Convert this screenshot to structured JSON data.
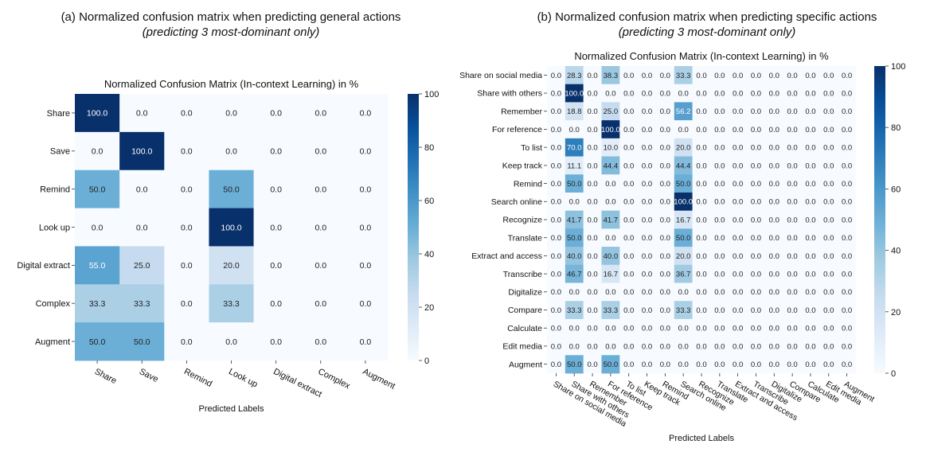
{
  "panel_a": {
    "title": "(a) Normalized confusion matrix when predicting general actions",
    "subtitle": "(predicting 3 most-dominant only)"
  },
  "panel_b": {
    "title": "(b) Normalized confusion matrix when predicting specific actions",
    "subtitle": "(predicting 3 most-dominant only)"
  },
  "chart_data": [
    {
      "type": "heatmap",
      "title": "Normalized Confusion Matrix (In-context Learning) in %",
      "xlabel": "Predicted Labels",
      "ylabel": "",
      "x_labels": [
        "Share",
        "Save",
        "Remind",
        "Look up",
        "Digital extract",
        "Complex",
        "Augment"
      ],
      "y_labels": [
        "Share",
        "Save",
        "Remind",
        "Look up",
        "Digital extract",
        "Complex",
        "Augment"
      ],
      "values": [
        [
          100.0,
          0.0,
          0.0,
          0.0,
          0.0,
          0.0,
          0.0
        ],
        [
          0.0,
          100.0,
          0.0,
          0.0,
          0.0,
          0.0,
          0.0
        ],
        [
          50.0,
          0.0,
          0.0,
          50.0,
          0.0,
          0.0,
          0.0
        ],
        [
          0.0,
          0.0,
          0.0,
          100.0,
          0.0,
          0.0,
          0.0
        ],
        [
          55.0,
          25.0,
          0.0,
          20.0,
          0.0,
          0.0,
          0.0
        ],
        [
          33.3,
          33.3,
          0.0,
          33.3,
          0.0,
          0.0,
          0.0
        ],
        [
          50.0,
          50.0,
          0.0,
          0.0,
          0.0,
          0.0,
          0.0
        ]
      ],
      "colorbar": {
        "min": 0,
        "max": 100,
        "ticks": [
          0,
          20,
          40,
          60,
          80,
          100
        ],
        "cmap": "Blues"
      }
    },
    {
      "type": "heatmap",
      "title": "Normalized Confusion Matrix (In-context Learning) in %",
      "xlabel": "Predicted Labels",
      "ylabel": "",
      "x_labels": [
        "Share on social media",
        "Share with others",
        "Remember",
        "For reference",
        "To list",
        "Keep track",
        "Remind",
        "Search online",
        "Recognize",
        "Translate",
        "Extract and access",
        "Transcribe",
        "Digitalize",
        "Compare",
        "Calculate",
        "Edit media",
        "Augment"
      ],
      "y_labels": [
        "Share on social media",
        "Share with others",
        "Remember",
        "For reference",
        "To list",
        "Keep track",
        "Remind",
        "Search online",
        "Recognize",
        "Translate",
        "Extract and access",
        "Transcribe",
        "Digitalize",
        "Compare",
        "Calculate",
        "Edit media",
        "Augment"
      ],
      "values": [
        [
          0.0,
          28.3,
          0.0,
          38.3,
          0.0,
          0.0,
          0.0,
          33.3,
          0.0,
          0.0,
          0.0,
          0.0,
          0.0,
          0.0,
          0.0,
          0.0,
          0.0
        ],
        [
          0.0,
          100.0,
          0.0,
          0.0,
          0.0,
          0.0,
          0.0,
          0.0,
          0.0,
          0.0,
          0.0,
          0.0,
          0.0,
          0.0,
          0.0,
          0.0,
          0.0
        ],
        [
          0.0,
          18.8,
          0.0,
          25.0,
          0.0,
          0.0,
          0.0,
          56.2,
          0.0,
          0.0,
          0.0,
          0.0,
          0.0,
          0.0,
          0.0,
          0.0,
          0.0
        ],
        [
          0.0,
          0.0,
          0.0,
          100.0,
          0.0,
          0.0,
          0.0,
          0.0,
          0.0,
          0.0,
          0.0,
          0.0,
          0.0,
          0.0,
          0.0,
          0.0,
          0.0
        ],
        [
          0.0,
          70.0,
          0.0,
          10.0,
          0.0,
          0.0,
          0.0,
          20.0,
          0.0,
          0.0,
          0.0,
          0.0,
          0.0,
          0.0,
          0.0,
          0.0,
          0.0
        ],
        [
          0.0,
          11.1,
          0.0,
          44.4,
          0.0,
          0.0,
          0.0,
          44.4,
          0.0,
          0.0,
          0.0,
          0.0,
          0.0,
          0.0,
          0.0,
          0.0,
          0.0
        ],
        [
          0.0,
          50.0,
          0.0,
          0.0,
          0.0,
          0.0,
          0.0,
          50.0,
          0.0,
          0.0,
          0.0,
          0.0,
          0.0,
          0.0,
          0.0,
          0.0,
          0.0
        ],
        [
          0.0,
          0.0,
          0.0,
          0.0,
          0.0,
          0.0,
          0.0,
          100.0,
          0.0,
          0.0,
          0.0,
          0.0,
          0.0,
          0.0,
          0.0,
          0.0,
          0.0
        ],
        [
          0.0,
          41.7,
          0.0,
          41.7,
          0.0,
          0.0,
          0.0,
          16.7,
          0.0,
          0.0,
          0.0,
          0.0,
          0.0,
          0.0,
          0.0,
          0.0,
          0.0
        ],
        [
          0.0,
          50.0,
          0.0,
          0.0,
          0.0,
          0.0,
          0.0,
          50.0,
          0.0,
          0.0,
          0.0,
          0.0,
          0.0,
          0.0,
          0.0,
          0.0,
          0.0
        ],
        [
          0.0,
          40.0,
          0.0,
          40.0,
          0.0,
          0.0,
          0.0,
          20.0,
          0.0,
          0.0,
          0.0,
          0.0,
          0.0,
          0.0,
          0.0,
          0.0,
          0.0
        ],
        [
          0.0,
          46.7,
          0.0,
          16.7,
          0.0,
          0.0,
          0.0,
          36.7,
          0.0,
          0.0,
          0.0,
          0.0,
          0.0,
          0.0,
          0.0,
          0.0,
          0.0
        ],
        [
          0.0,
          0.0,
          0.0,
          0.0,
          0.0,
          0.0,
          0.0,
          0.0,
          0.0,
          0.0,
          0.0,
          0.0,
          0.0,
          0.0,
          0.0,
          0.0,
          0.0
        ],
        [
          0.0,
          33.3,
          0.0,
          33.3,
          0.0,
          0.0,
          0.0,
          33.3,
          0.0,
          0.0,
          0.0,
          0.0,
          0.0,
          0.0,
          0.0,
          0.0,
          0.0
        ],
        [
          0.0,
          0.0,
          0.0,
          0.0,
          0.0,
          0.0,
          0.0,
          0.0,
          0.0,
          0.0,
          0.0,
          0.0,
          0.0,
          0.0,
          0.0,
          0.0,
          0.0
        ],
        [
          0.0,
          0.0,
          0.0,
          0.0,
          0.0,
          0.0,
          0.0,
          0.0,
          0.0,
          0.0,
          0.0,
          0.0,
          0.0,
          0.0,
          0.0,
          0.0,
          0.0
        ],
        [
          0.0,
          50.0,
          0.0,
          50.0,
          0.0,
          0.0,
          0.0,
          0.0,
          0.0,
          0.0,
          0.0,
          0.0,
          0.0,
          0.0,
          0.0,
          0.0,
          0.0
        ]
      ],
      "colorbar": {
        "min": 0,
        "max": 100,
        "ticks": [
          0,
          20,
          40,
          60,
          80,
          100
        ],
        "cmap": "Blues"
      }
    }
  ]
}
